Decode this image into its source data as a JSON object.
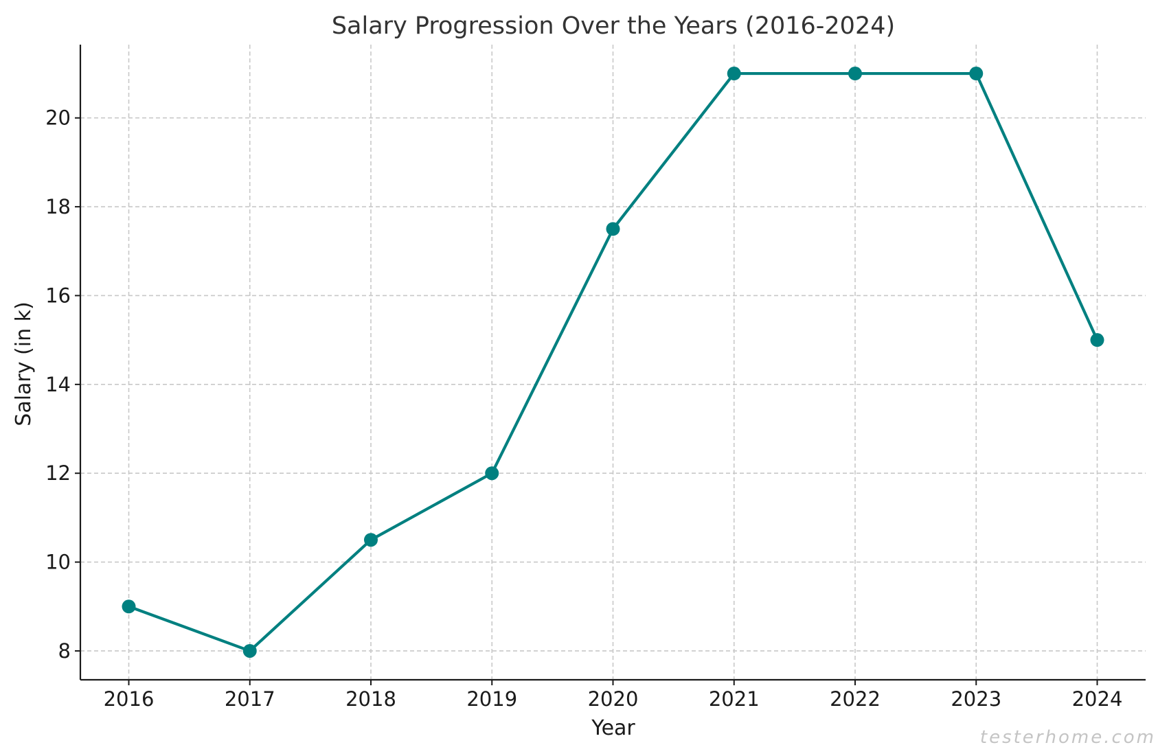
{
  "chart_data": {
    "type": "line",
    "title": "Salary Progression Over the Years (2016-2024)",
    "xlabel": "Year",
    "ylabel": "Salary (in k)",
    "x": [
      2016,
      2017,
      2018,
      2019,
      2020,
      2021,
      2022,
      2023,
      2024
    ],
    "x_tick_labels": [
      "2016",
      "2017",
      "2018",
      "2019",
      "2020",
      "2021",
      "2022",
      "2023",
      "2024"
    ],
    "series": [
      {
        "values": [
          9,
          8,
          10.5,
          12,
          17.5,
          21,
          21,
          21,
          15
        ],
        "color": "#008080",
        "marker": "circle"
      }
    ],
    "y_ticks": [
      8,
      10,
      12,
      14,
      16,
      18,
      20
    ],
    "y_tick_labels": [
      "8",
      "10",
      "12",
      "14",
      "16",
      "18",
      "20"
    ],
    "xlim": [
      2015.6,
      2024.4
    ],
    "ylim": [
      7.35,
      21.65
    ],
    "grid": true
  },
  "watermark": "testerhome.com"
}
